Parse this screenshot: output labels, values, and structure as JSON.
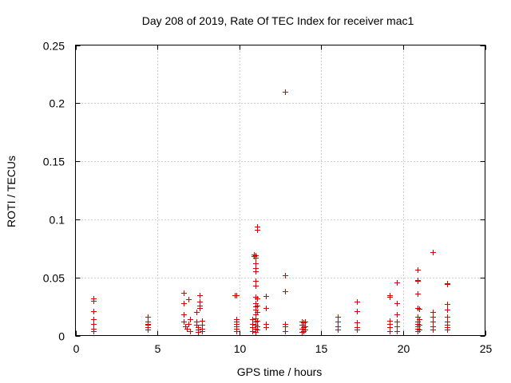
{
  "chart_data": {
    "type": "scatter",
    "title": "Day 208 of 2019, Rate Of TEC Index for receiver mac1",
    "xlabel": "GPS time / hours",
    "ylabel": "ROTI / TECUs",
    "xlim": [
      0,
      25
    ],
    "ylim": [
      0,
      0.25
    ],
    "xticks": [
      0,
      5,
      10,
      15,
      20,
      25
    ],
    "xtick_labels": [
      "0",
      "5",
      "10",
      "15",
      "20",
      "25"
    ],
    "yticks": [
      0,
      0.05,
      0.1,
      0.15,
      0.2,
      0.25
    ],
    "ytick_labels": [
      "0",
      "0.05",
      "0.1",
      "0.15",
      "0.2",
      "0.25"
    ],
    "grid": true,
    "marker": "+",
    "color": "#e00000",
    "points": [
      [
        1.1,
        0.032
      ],
      [
        1.1,
        0.03
      ],
      [
        1.1,
        0.021
      ],
      [
        1.1,
        0.014
      ],
      [
        1.1,
        0.01
      ],
      [
        1.1,
        0.006
      ],
      [
        1.1,
        0.004
      ],
      [
        4.4,
        0.016
      ],
      [
        4.4,
        0.012
      ],
      [
        4.4,
        0.01
      ],
      [
        4.4,
        0.009
      ],
      [
        4.4,
        0.007
      ],
      [
        4.4,
        0.005
      ],
      [
        6.6,
        0.037
      ],
      [
        6.6,
        0.028
      ],
      [
        6.6,
        0.018
      ],
      [
        6.6,
        0.012
      ],
      [
        6.7,
        0.008
      ],
      [
        6.8,
        0.006
      ],
      [
        6.9,
        0.031
      ],
      [
        6.9,
        0.01
      ],
      [
        7.0,
        0.004
      ],
      [
        7.0,
        0.014
      ],
      [
        7.4,
        0.02
      ],
      [
        7.4,
        0.012
      ],
      [
        7.4,
        0.009
      ],
      [
        7.5,
        0.007
      ],
      [
        7.5,
        0.005
      ],
      [
        7.5,
        0.003
      ],
      [
        7.6,
        0.035
      ],
      [
        7.6,
        0.029
      ],
      [
        7.6,
        0.026
      ],
      [
        7.6,
        0.024
      ],
      [
        7.7,
        0.013
      ],
      [
        7.7,
        0.009
      ],
      [
        7.7,
        0.006
      ],
      [
        7.7,
        0.004
      ],
      [
        9.7,
        0.035
      ],
      [
        9.8,
        0.035
      ],
      [
        9.8,
        0.014
      ],
      [
        9.8,
        0.012
      ],
      [
        9.8,
        0.01
      ],
      [
        9.8,
        0.008
      ],
      [
        9.8,
        0.006
      ],
      [
        9.8,
        0.004
      ],
      [
        10.8,
        0.014
      ],
      [
        10.8,
        0.01
      ],
      [
        10.8,
        0.007
      ],
      [
        10.8,
        0.004
      ],
      [
        10.9,
        0.07
      ],
      [
        10.9,
        0.068
      ],
      [
        11.0,
        0.069
      ],
      [
        11.0,
        0.067
      ],
      [
        11.0,
        0.062
      ],
      [
        11.0,
        0.058
      ],
      [
        11.0,
        0.055
      ],
      [
        11.0,
        0.047
      ],
      [
        11.0,
        0.043
      ],
      [
        11.0,
        0.033
      ],
      [
        11.0,
        0.028
      ],
      [
        11.0,
        0.025
      ],
      [
        11.0,
        0.022
      ],
      [
        11.0,
        0.018
      ],
      [
        11.0,
        0.015
      ],
      [
        11.0,
        0.012
      ],
      [
        11.0,
        0.009
      ],
      [
        11.0,
        0.006
      ],
      [
        11.0,
        0.003
      ],
      [
        11.1,
        0.094
      ],
      [
        11.1,
        0.091
      ],
      [
        11.1,
        0.032
      ],
      [
        11.1,
        0.026
      ],
      [
        11.1,
        0.02
      ],
      [
        11.1,
        0.013
      ],
      [
        11.1,
        0.008
      ],
      [
        11.1,
        0.005
      ],
      [
        11.6,
        0.034
      ],
      [
        11.6,
        0.024
      ],
      [
        11.6,
        0.01
      ],
      [
        11.6,
        0.007
      ],
      [
        12.8,
        0.21
      ],
      [
        12.8,
        0.052
      ],
      [
        12.8,
        0.038
      ],
      [
        12.8,
        0.01
      ],
      [
        12.8,
        0.008
      ],
      [
        12.8,
        0.004
      ],
      [
        13.8,
        0.012
      ],
      [
        13.8,
        0.009
      ],
      [
        13.8,
        0.006
      ],
      [
        13.8,
        0.003
      ],
      [
        13.9,
        0.011
      ],
      [
        13.9,
        0.007
      ],
      [
        13.9,
        0.004
      ],
      [
        14.0,
        0.012
      ],
      [
        14.0,
        0.008
      ],
      [
        14.0,
        0.005
      ],
      [
        16.0,
        0.016
      ],
      [
        16.0,
        0.012
      ],
      [
        16.0,
        0.008
      ],
      [
        16.0,
        0.005
      ],
      [
        17.2,
        0.029
      ],
      [
        17.2,
        0.021
      ],
      [
        17.2,
        0.011
      ],
      [
        17.2,
        0.007
      ],
      [
        17.2,
        0.005
      ],
      [
        19.2,
        0.035
      ],
      [
        19.2,
        0.033
      ],
      [
        19.2,
        0.013
      ],
      [
        19.2,
        0.01
      ],
      [
        19.2,
        0.007
      ],
      [
        19.2,
        0.004
      ],
      [
        19.6,
        0.046
      ],
      [
        19.6,
        0.028
      ],
      [
        19.6,
        0.018
      ],
      [
        19.6,
        0.012
      ],
      [
        19.6,
        0.008
      ],
      [
        19.6,
        0.004
      ],
      [
        20.9,
        0.057
      ],
      [
        20.9,
        0.048
      ],
      [
        20.9,
        0.047
      ],
      [
        20.9,
        0.036
      ],
      [
        20.9,
        0.024
      ],
      [
        21.0,
        0.023
      ],
      [
        20.9,
        0.016
      ],
      [
        20.9,
        0.012
      ],
      [
        20.9,
        0.01
      ],
      [
        20.9,
        0.008
      ],
      [
        20.9,
        0.006
      ],
      [
        20.9,
        0.004
      ],
      [
        21.0,
        0.014
      ],
      [
        21.0,
        0.009
      ],
      [
        21.0,
        0.005
      ],
      [
        21.8,
        0.072
      ],
      [
        21.8,
        0.02
      ],
      [
        21.8,
        0.016
      ],
      [
        21.8,
        0.012
      ],
      [
        21.8,
        0.008
      ],
      [
        21.8,
        0.005
      ],
      [
        22.7,
        0.045
      ],
      [
        22.7,
        0.044
      ],
      [
        22.7,
        0.027
      ],
      [
        22.7,
        0.022
      ],
      [
        22.7,
        0.016
      ],
      [
        22.7,
        0.012
      ],
      [
        22.7,
        0.009
      ],
      [
        22.7,
        0.007
      ],
      [
        22.7,
        0.005
      ]
    ]
  }
}
